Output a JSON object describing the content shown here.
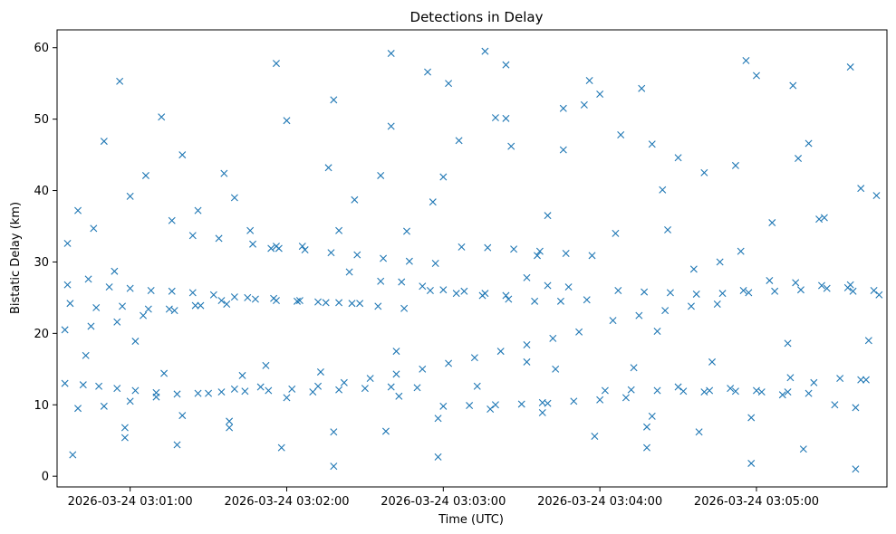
{
  "chart_data": {
    "type": "scatter",
    "title": "Detections in Delay",
    "xlabel": "Time (UTC)",
    "ylabel": "Bistatic Delay (km)",
    "x_axis_type": "time",
    "xlim": [
      "2026-03-24 03:00:32",
      "2026-03-24 03:05:50"
    ],
    "ylim": [
      -1.5,
      62.5
    ],
    "xticks": [
      "2026-03-24 03:01:00",
      "2026-03-24 03:02:00",
      "2026-03-24 03:03:00",
      "2026-03-24 03:04:00",
      "2026-03-24 03:05:00"
    ],
    "yticks": [
      0,
      10,
      20,
      30,
      40,
      50,
      60
    ],
    "marker": "x",
    "color": "#1f77b4",
    "grid": false,
    "legend": "none",
    "series": [
      {
        "x": [
          "2026-03-24 03:00:35",
          "2026-03-24 03:00:42",
          "2026-03-24 03:00:48",
          "2026-03-24 03:00:55",
          "2026-03-24 03:01:02",
          "2026-03-24 03:01:10",
          "2026-03-24 03:01:18",
          "2026-03-24 03:01:26",
          "2026-03-24 03:01:35",
          "2026-03-24 03:01:44",
          "2026-03-24 03:01:53",
          "2026-03-24 03:02:02",
          "2026-03-24 03:02:12",
          "2026-03-24 03:02:22",
          "2026-03-24 03:02:32",
          "2026-03-24 03:02:42",
          "2026-03-24 03:02:52",
          "2026-03-24 03:03:02",
          "2026-03-24 03:03:12",
          "2026-03-24 03:03:22",
          "2026-03-24 03:03:32",
          "2026-03-24 03:03:42",
          "2026-03-24 03:03:52",
          "2026-03-24 03:04:02",
          "2026-03-24 03:04:12",
          "2026-03-24 03:04:22",
          "2026-03-24 03:04:32",
          "2026-03-24 03:04:42",
          "2026-03-24 03:04:52",
          "2026-03-24 03:05:02",
          "2026-03-24 03:05:12",
          "2026-03-24 03:05:22",
          "2026-03-24 03:05:32",
          "2026-03-24 03:05:42",
          "2026-03-24 03:00:35",
          "2026-03-24 03:00:45",
          "2026-03-24 03:00:55",
          "2026-03-24 03:01:05",
          "2026-03-24 03:01:15",
          "2026-03-24 03:01:25",
          "2026-03-24 03:01:35",
          "2026-03-24 03:01:45",
          "2026-03-24 03:01:55",
          "2026-03-24 03:02:05",
          "2026-03-24 03:02:15",
          "2026-03-24 03:02:25",
          "2026-03-24 03:02:35",
          "2026-03-24 03:02:45",
          "2026-03-24 03:02:55",
          "2026-03-24 03:03:05",
          "2026-03-24 03:03:15",
          "2026-03-24 03:03:25",
          "2026-03-24 03:03:35",
          "2026-03-24 03:03:45",
          "2026-03-24 03:03:55",
          "2026-03-24 03:04:05",
          "2026-03-24 03:04:15",
          "2026-03-24 03:04:25",
          "2026-03-24 03:04:35",
          "2026-03-24 03:04:45",
          "2026-03-24 03:04:55",
          "2026-03-24 03:05:05",
          "2026-03-24 03:05:15",
          "2026-03-24 03:05:25",
          "2026-03-24 03:05:35",
          "2026-03-24 03:05:45",
          "2026-03-24 03:00:36",
          "2026-03-24 03:00:44",
          "2026-03-24 03:00:52",
          "2026-03-24 03:01:00",
          "2026-03-24 03:01:08",
          "2026-03-24 03:01:16",
          "2026-03-24 03:01:24",
          "2026-03-24 03:01:32",
          "2026-03-24 03:01:40",
          "2026-03-24 03:01:48",
          "2026-03-24 03:01:56",
          "2026-03-24 03:02:04",
          "2026-03-24 03:02:12",
          "2026-03-24 03:02:20",
          "2026-03-24 03:02:28",
          "2026-03-24 03:02:36",
          "2026-03-24 03:02:44",
          "2026-03-24 03:02:52",
          "2026-03-24 03:03:00",
          "2026-03-24 03:03:08",
          "2026-03-24 03:03:16",
          "2026-03-24 03:03:24",
          "2026-03-24 03:03:32",
          "2026-03-24 03:03:40",
          "2026-03-24 03:03:48",
          "2026-03-24 03:00:37",
          "2026-03-24 03:00:47",
          "2026-03-24 03:00:57",
          "2026-03-24 03:01:07",
          "2026-03-24 03:01:17",
          "2026-03-24 03:01:27",
          "2026-03-24 03:01:37",
          "2026-03-24 03:01:47",
          "2026-03-24 03:01:57",
          "2026-03-24 03:02:07",
          "2026-03-24 03:02:17",
          "2026-03-24 03:02:27",
          "2026-03-24 03:02:37",
          "2026-03-24 03:02:47",
          "2026-03-24 03:02:57",
          "2026-03-24 03:03:07",
          "2026-03-24 03:03:17",
          "2026-03-24 03:03:27",
          "2026-03-24 03:03:37",
          "2026-03-24 03:03:47",
          "2026-03-24 03:03:57",
          "2026-03-24 03:04:07",
          "2026-03-24 03:04:17",
          "2026-03-24 03:04:27",
          "2026-03-24 03:04:37",
          "2026-03-24 03:04:47",
          "2026-03-24 03:04:57",
          "2026-03-24 03:05:07",
          "2026-03-24 03:05:17",
          "2026-03-24 03:05:27",
          "2026-03-24 03:05:37",
          "2026-03-24 03:05:47",
          "2026-03-24 03:00:40",
          "2026-03-24 03:00:50",
          "2026-03-24 03:01:00",
          "2026-03-24 03:01:10",
          "2026-03-24 03:01:20",
          "2026-03-24 03:01:30",
          "2026-03-24 03:01:40",
          "2026-03-24 03:01:50",
          "2026-03-24 03:02:00",
          "2026-03-24 03:02:10",
          "2026-03-24 03:02:20",
          "2026-03-24 03:02:30",
          "2026-03-24 03:02:40",
          "2026-03-24 03:02:50",
          "2026-03-24 03:03:00",
          "2026-03-24 03:03:10",
          "2026-03-24 03:03:20",
          "2026-03-24 03:03:30",
          "2026-03-24 03:03:40",
          "2026-03-24 03:03:50",
          "2026-03-24 03:04:00",
          "2026-03-24 03:04:10",
          "2026-03-24 03:04:20",
          "2026-03-24 03:04:30",
          "2026-03-24 03:04:40",
          "2026-03-24 03:04:50",
          "2026-03-24 03:05:00",
          "2026-03-24 03:05:10",
          "2026-03-24 03:05:20",
          "2026-03-24 03:05:30",
          "2026-03-24 03:05:40",
          "2026-03-24 03:00:38",
          "2026-03-24 03:00:58",
          "2026-03-24 03:01:18",
          "2026-03-24 03:01:38",
          "2026-03-24 03:01:58",
          "2026-03-24 03:02:18",
          "2026-03-24 03:02:38",
          "2026-03-24 03:02:58",
          "2026-03-24 03:03:18",
          "2026-03-24 03:03:38",
          "2026-03-24 03:03:58",
          "2026-03-24 03:04:18",
          "2026-03-24 03:04:38",
          "2026-03-24 03:04:58",
          "2026-03-24 03:05:18",
          "2026-03-24 03:05:38",
          "2026-03-24 03:00:46",
          "2026-03-24 03:01:06",
          "2026-03-24 03:01:26",
          "2026-03-24 03:01:46",
          "2026-03-24 03:02:06",
          "2026-03-24 03:02:26",
          "2026-03-24 03:02:46",
          "2026-03-24 03:03:06",
          "2026-03-24 03:03:26",
          "2026-03-24 03:03:46",
          "2026-03-24 03:04:06",
          "2026-03-24 03:04:26",
          "2026-03-24 03:04:46",
          "2026-03-24 03:05:06",
          "2026-03-24 03:05:26",
          "2026-03-24 03:05:46",
          "2026-03-24 03:00:50",
          "2026-03-24 03:01:12",
          "2026-03-24 03:01:34",
          "2026-03-24 03:01:56",
          "2026-03-24 03:02:18",
          "2026-03-24 03:02:40",
          "2026-03-24 03:03:02",
          "2026-03-24 03:03:24",
          "2026-03-24 03:03:46",
          "2026-03-24 03:04:08",
          "2026-03-24 03:04:30",
          "2026-03-24 03:04:52",
          "2026-03-24 03:05:14",
          "2026-03-24 03:05:36",
          "2026-03-24 03:00:40",
          "2026-03-24 03:01:00",
          "2026-03-24 03:01:20",
          "2026-03-24 03:01:40",
          "2026-03-24 03:02:00",
          "2026-03-24 03:02:20",
          "2026-03-24 03:02:40",
          "2026-03-24 03:03:00",
          "2026-03-24 03:03:20",
          "2026-03-24 03:03:40",
          "2026-03-24 03:04:00",
          "2026-03-24 03:04:20",
          "2026-03-24 03:04:40",
          "2026-03-24 03:05:00",
          "2026-03-24 03:05:20",
          "2026-03-24 03:05:40",
          "2026-03-24 03:00:36",
          "2026-03-24 03:00:56",
          "2026-03-24 03:01:16",
          "2026-03-24 03:01:36",
          "2026-03-24 03:01:56",
          "2026-03-24 03:02:16",
          "2026-03-24 03:02:36",
          "2026-03-24 03:02:56",
          "2026-03-24 03:03:16",
          "2026-03-24 03:03:36",
          "2026-03-24 03:03:56",
          "2026-03-24 03:04:16",
          "2026-03-24 03:04:36",
          "2026-03-24 03:04:56",
          "2026-03-24 03:05:16",
          "2026-03-24 03:05:36",
          "2026-03-24 03:00:54",
          "2026-03-24 03:01:24",
          "2026-03-24 03:01:54",
          "2026-03-24 03:02:24",
          "2026-03-24 03:02:54",
          "2026-03-24 03:03:24",
          "2026-03-24 03:03:54",
          "2026-03-24 03:04:24",
          "2026-03-24 03:04:54",
          "2026-03-24 03:05:24",
          "2026-03-24 03:00:43",
          "2026-03-24 03:01:13",
          "2026-03-24 03:01:43",
          "2026-03-24 03:02:13",
          "2026-03-24 03:02:43",
          "2026-03-24 03:03:13",
          "2026-03-24 03:03:43",
          "2026-03-24 03:04:13",
          "2026-03-24 03:04:43",
          "2026-03-24 03:05:13",
          "2026-03-24 03:05:43",
          "2026-03-24 03:00:58",
          "2026-03-24 03:01:38",
          "2026-03-24 03:02:18",
          "2026-03-24 03:02:58",
          "2026-03-24 03:03:38",
          "2026-03-24 03:04:18",
          "2026-03-24 03:04:58",
          "2026-03-24 03:05:38",
          "2026-03-24 03:01:02",
          "2026-03-24 03:01:52",
          "2026-03-24 03:02:42",
          "2026-03-24 03:03:32",
          "2026-03-24 03:04:22",
          "2026-03-24 03:05:12"
        ],
        "y": [
          13.0,
          12.8,
          12.6,
          12.3,
          12.0,
          11.7,
          11.5,
          11.6,
          11.8,
          11.9,
          12.0,
          12.2,
          12.6,
          13.1,
          13.7,
          14.3,
          15.0,
          15.8,
          16.6,
          17.5,
          18.4,
          19.3,
          20.2,
          12.0,
          12.1,
          12.0,
          11.9,
          12.0,
          11.9,
          11.8,
          11.8,
          13.1,
          13.7,
          13.5,
          20.5,
          21.0,
          21.6,
          22.5,
          23.4,
          23.9,
          24.6,
          25.0,
          24.9,
          24.6,
          24.3,
          24.2,
          23.8,
          23.5,
          26.0,
          25.6,
          25.3,
          24.8,
          24.5,
          24.5,
          24.7,
          21.8,
          22.5,
          23.2,
          23.8,
          24.1,
          26.0,
          27.4,
          27.1,
          26.7,
          26.4,
          26.0,
          26.8,
          27.6,
          26.5,
          26.3,
          26.0,
          25.9,
          25.7,
          25.4,
          25.1,
          24.8,
          24.6,
          24.5,
          24.4,
          24.3,
          24.2,
          27.3,
          27.2,
          26.6,
          26.1,
          25.9,
          25.6,
          25.3,
          27.8,
          26.7,
          26.5,
          24.2,
          23.6,
          23.8,
          23.4,
          23.2,
          23.9,
          24.1,
          32.5,
          31.9,
          31.7,
          31.3,
          31.0,
          30.5,
          30.1,
          29.8,
          32.1,
          32.0,
          31.8,
          31.5,
          31.2,
          30.9,
          26.0,
          25.8,
          25.7,
          25.5,
          25.6,
          25.7,
          25.9,
          26.1,
          26.3,
          25.9,
          25.4,
          9.5,
          9.8,
          10.5,
          11.1,
          8.5,
          11.6,
          12.2,
          12.5,
          11.0,
          11.8,
          12.1,
          12.3,
          12.5,
          12.4,
          9.8,
          9.9,
          10.0,
          10.1,
          10.2,
          10.5,
          10.7,
          11.0,
          8.4,
          12.5,
          11.8,
          12.3,
          12.0,
          11.4,
          11.6,
          10.0,
          13.5,
          3.0,
          5.4,
          4.4,
          6.8,
          4.0,
          1.4,
          6.3,
          2.7,
          9.4,
          10.3,
          5.6,
          4.0,
          6.2,
          1.8,
          3.8,
          1.0,
          34.7,
          42.1,
          37.2,
          34.4,
          32.2,
          38.7,
          34.3,
          47.0,
          46.2,
          45.7,
          34.0,
          34.5,
          30.0,
          35.5,
          36.2,
          39.3,
          46.9,
          50.3,
          33.3,
          57.8,
          52.7,
          59.2,
          55.0,
          57.6,
          51.5,
          47.8,
          44.6,
          43.5,
          54.7,
          57.3,
          37.2,
          39.2,
          45.0,
          39.0,
          49.8,
          34.4,
          49.0,
          41.9,
          50.2,
          36.5,
          53.5,
          46.5,
          42.5,
          56.1,
          46.6,
          40.3,
          32.6,
          55.3,
          35.8,
          42.4,
          32.2,
          43.2,
          42.1,
          38.4,
          59.5,
          30.9,
          55.4,
          54.3,
          29.0,
          58.2,
          44.5,
          26.8,
          28.7,
          33.7,
          31.9,
          28.6,
          56.6,
          50.1,
          52.0,
          40.1,
          31.5,
          36.0,
          16.9,
          14.4,
          14.1,
          14.6,
          11.2,
          12.6,
          15.0,
          15.2,
          16.0,
          13.8,
          19.0,
          6.8,
          7.7,
          6.2,
          8.1,
          8.9,
          6.9,
          8.2,
          9.6,
          18.9,
          15.5,
          17.5,
          16.0,
          20.3,
          18.6
        ]
      }
    ]
  }
}
